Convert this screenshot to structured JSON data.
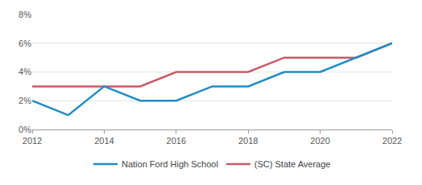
{
  "chart_data": {
    "type": "line",
    "x": [
      2012,
      2013,
      2014,
      2015,
      2016,
      2017,
      2018,
      2019,
      2020,
      2021,
      2022
    ],
    "series": [
      {
        "name": "Nation Ford High School",
        "color": "#1f8dc2",
        "values": [
          2,
          1,
          3,
          2,
          2,
          3,
          3,
          4,
          4,
          5,
          6
        ]
      },
      {
        "name": "(SC) State Average",
        "color": "#c95a6a",
        "values": [
          3,
          3,
          3,
          3,
          4,
          4,
          4,
          5,
          5,
          5,
          6
        ]
      }
    ],
    "xlim": [
      2012,
      2022
    ],
    "xticks": [
      2012,
      2014,
      2016,
      2018,
      2020,
      2022
    ],
    "ylim": [
      0,
      8
    ],
    "yticks": [
      {
        "value": 0,
        "label": "0%"
      },
      {
        "value": 2,
        "label": "2%"
      },
      {
        "value": 4,
        "label": "4%"
      },
      {
        "value": 6,
        "label": "6%"
      },
      {
        "value": 8,
        "label": "8%"
      }
    ],
    "grid": true,
    "legend": "bottom"
  }
}
